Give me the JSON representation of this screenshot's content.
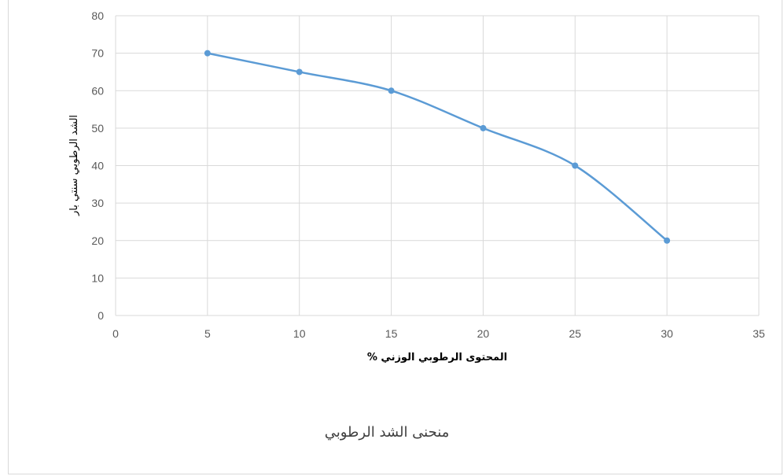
{
  "chart_data": {
    "type": "line",
    "title": "منحنى الشد الرطوبي",
    "xlabel": "المحتوى الرطوبي الوزني %",
    "ylabel": "الشد الرطوبي  سنتي بار",
    "x": [
      5,
      10,
      15,
      20,
      25,
      30
    ],
    "series": [
      {
        "values": [
          70,
          65,
          60,
          50,
          40,
          20
        ]
      }
    ],
    "xlim": [
      0,
      35
    ],
    "ylim": [
      0,
      80
    ],
    "xticks": [
      0,
      5,
      10,
      15,
      20,
      25,
      30,
      35
    ],
    "yticks": [
      0,
      10,
      20,
      30,
      40,
      50,
      60,
      70,
      80
    ],
    "grid": true,
    "smooth": true,
    "colors": {
      "line": "#5b9bd5",
      "grid": "#d9d9d9"
    }
  }
}
